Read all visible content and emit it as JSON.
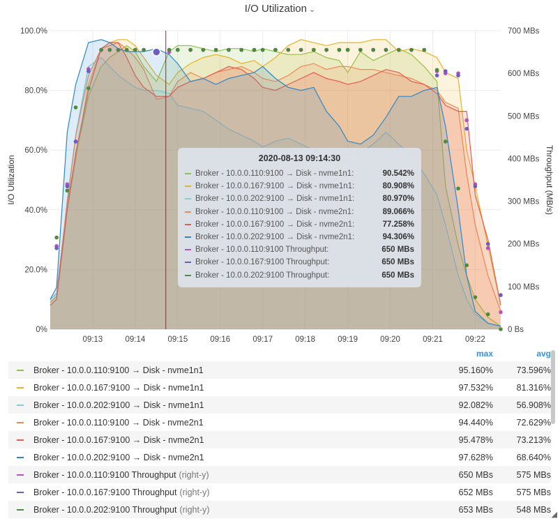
{
  "header": {
    "title": "I/O Utilization",
    "dropdown_icon": "chevron-down-icon"
  },
  "chart_data": {
    "type": "area",
    "title": "I/O Utilization",
    "ylabel_left": "I/O Utilization",
    "ylabel_right": "Throughput (MB/s)",
    "ylim_left": [
      0,
      100
    ],
    "ylim_right": [
      0,
      700
    ],
    "yticks_left": [
      "0%",
      "20.0%",
      "40.0%",
      "60.0%",
      "80.0%",
      "100.0%"
    ],
    "yticks_right": [
      "0 Bs",
      "100 MBs",
      "200 MBs",
      "300 MBs",
      "400 MBs",
      "500 MBs",
      "600 MBs",
      "700 MBs"
    ],
    "xlim": [
      12.0,
      22.6
    ],
    "xticks": [
      {
        "v": 13,
        "label": "09:13"
      },
      {
        "v": 14,
        "label": "09:14"
      },
      {
        "v": 15,
        "label": "09:15"
      },
      {
        "v": 16,
        "label": "09:16"
      },
      {
        "v": 17,
        "label": "09:17"
      },
      {
        "v": 18,
        "label": "09:18"
      },
      {
        "v": 19,
        "label": "09:19"
      },
      {
        "v": 20,
        "label": "09:20"
      },
      {
        "v": 21,
        "label": "09:21"
      },
      {
        "v": 22,
        "label": "09:22"
      }
    ],
    "x": [
      12.0,
      12.15,
      12.4,
      12.6,
      12.9,
      13.2,
      13.4,
      13.6,
      13.8,
      14.0,
      14.2,
      14.5,
      14.8,
      15.0,
      15.3,
      15.6,
      15.9,
      16.2,
      16.5,
      16.8,
      17.0,
      17.3,
      17.6,
      17.9,
      18.2,
      18.5,
      18.8,
      19.0,
      19.3,
      19.6,
      19.9,
      20.2,
      20.5,
      20.8,
      21.1,
      21.3,
      21.6,
      21.8,
      22.0,
      22.3,
      22.6
    ],
    "crosshair_x": 14.72,
    "series": [
      {
        "name": "Broker - 10.0.0.110:9100 → Disk - nvme1n1",
        "color": "#8bc34a",
        "axis": "left",
        "values": [
          10,
          12,
          42,
          58,
          78,
          88,
          91,
          93,
          95,
          93,
          88,
          83,
          93,
          95,
          95,
          94,
          93,
          94,
          94,
          93,
          94,
          93,
          92,
          92,
          93,
          91,
          90,
          86,
          93,
          90,
          92,
          94,
          92,
          88,
          83,
          48,
          28,
          18,
          10,
          4,
          1
        ]
      },
      {
        "name": "Broker - 10.0.0.167:9100 → Disk - nvme1n1",
        "color": "#e6b325",
        "axis": "left",
        "values": [
          9,
          11,
          40,
          57,
          82,
          94,
          96,
          97,
          97,
          95,
          91,
          85,
          82,
          86,
          89,
          91,
          92,
          91,
          89,
          90,
          88,
          91,
          95,
          97,
          96,
          95,
          96,
          96,
          96,
          97,
          97,
          93,
          94,
          93,
          91,
          86,
          84,
          60,
          48,
          28,
          8
        ]
      },
      {
        "name": "Broker - 10.0.0.202:9100 → Disk - nvme1n1",
        "color": "#7fcfdc",
        "axis": "left",
        "values": [
          10,
          12,
          42,
          65,
          88,
          91,
          88,
          85,
          83,
          81,
          80,
          80,
          79,
          75,
          74,
          73,
          70,
          67,
          65,
          63,
          61,
          63,
          64,
          62,
          60,
          58,
          57,
          56,
          59,
          62,
          66,
          62,
          58,
          52,
          45,
          35,
          18,
          10,
          5,
          2,
          1
        ]
      },
      {
        "name": "Broker - 10.0.0.110:9100 → Disk - nvme2n1",
        "color": "#f08a52",
        "axis": "left",
        "values": [
          9,
          11,
          43,
          65,
          85,
          94,
          95,
          96,
          94,
          91,
          87,
          77,
          78,
          83,
          86,
          84,
          86,
          87,
          88,
          86,
          84,
          83,
          85,
          88,
          89,
          87,
          88,
          88,
          87,
          87,
          86,
          85,
          84,
          82,
          80,
          76,
          74,
          52,
          35,
          18,
          6
        ]
      },
      {
        "name": "Broker - 10.0.0.167:9100 → Disk - nvme2n1",
        "color": "#e85a4f",
        "axis": "left",
        "values": [
          8,
          10,
          40,
          59,
          80,
          94,
          96,
          96,
          91,
          85,
          81,
          78,
          78,
          81,
          83,
          84,
          86,
          88,
          87,
          84,
          81,
          80,
          82,
          84,
          86,
          84,
          83,
          82,
          83,
          85,
          87,
          86,
          83,
          82,
          79,
          75,
          73,
          73,
          45,
          30,
          8
        ]
      },
      {
        "name": "Broker - 10.0.0.202:9100 → Disk - nvme2n1",
        "color": "#2e86c9",
        "axis": "left",
        "values": [
          10,
          14,
          66,
          82,
          96,
          97,
          96,
          94,
          93,
          93,
          93,
          94,
          92,
          89,
          83,
          84,
          82,
          84,
          85,
          86,
          88,
          84,
          81,
          80,
          81,
          73,
          68,
          63,
          62,
          65,
          71,
          78,
          78,
          80,
          81,
          68,
          40,
          18,
          6,
          2,
          1
        ]
      },
      {
        "name": "Broker - 10.0.0.110:9100 Throughput",
        "color": "#b84fc4",
        "axis": "right",
        "suffix": "(right-y)",
        "markers": true,
        "values": [
          null,
          195,
          340,
          440,
          610,
          655,
          655,
          655,
          655,
          655,
          655,
          650,
          650,
          655,
          655,
          655,
          655,
          655,
          655,
          655,
          655,
          655,
          655,
          655,
          655,
          655,
          655,
          655,
          655,
          655,
          655,
          655,
          655,
          655,
          605,
          600,
          600,
          490,
          340,
          190,
          40
        ]
      },
      {
        "name": "Broker - 10.0.0.167:9100 Throughput",
        "color": "#6a5fbf",
        "axis": "right",
        "suffix": "(right-y)",
        "markers": true,
        "values": [
          null,
          190,
          335,
          440,
          605,
          655,
          655,
          655,
          655,
          655,
          655,
          652,
          655,
          655,
          655,
          655,
          655,
          655,
          655,
          655,
          655,
          655,
          655,
          655,
          655,
          655,
          655,
          655,
          655,
          655,
          655,
          655,
          655,
          655,
          595,
          605,
          595,
          470,
          335,
          200,
          80
        ]
      },
      {
        "name": "Broker - 10.0.0.202:9100 Throughput",
        "color": "#4f8a3a",
        "axis": "right",
        "suffix": "(right-y)",
        "markers": true,
        "values": [
          null,
          215,
          325,
          520,
          565,
          655,
          655,
          655,
          655,
          655,
          655,
          650,
          655,
          655,
          655,
          655,
          655,
          655,
          655,
          655,
          655,
          655,
          655,
          655,
          655,
          655,
          655,
          655,
          655,
          655,
          655,
          655,
          655,
          655,
          608,
          440,
          330,
          150,
          75,
          35,
          0
        ]
      }
    ]
  },
  "tooltip": {
    "title": "2020-08-13 09:14:30",
    "rows": [
      {
        "label": "Broker - 10.0.0.110:9100 → Disk - nvme1n1:",
        "value": "90.542%",
        "color": "#8bc34a"
      },
      {
        "label": "Broker - 10.0.0.167:9100 → Disk - nvme1n1:",
        "value": "80.908%",
        "color": "#e6b325"
      },
      {
        "label": "Broker - 10.0.0.202:9100 → Disk - nvme1n1:",
        "value": "80.970%",
        "color": "#7fcfdc"
      },
      {
        "label": "Broker - 10.0.0.110:9100 → Disk - nvme2n1:",
        "value": "89.066%",
        "color": "#f08a52"
      },
      {
        "label": "Broker - 10.0.0.167:9100 → Disk - nvme2n1:",
        "value": "77.258%",
        "color": "#e85a4f"
      },
      {
        "label": "Broker - 10.0.0.202:9100 → Disk - nvme2n1:",
        "value": "94.306%",
        "color": "#2e86c9"
      },
      {
        "label": "Broker - 10.0.0.110:9100 Throughput:",
        "value": "650 MBs",
        "color": "#b84fc4"
      },
      {
        "label": "Broker - 10.0.0.167:9100 Throughput:",
        "value": "650 MBs",
        "color": "#6a5fbf"
      },
      {
        "label": "Broker - 10.0.0.202:9100 Throughput:",
        "value": "650 MBs",
        "color": "#4f8a3a"
      }
    ]
  },
  "legend": {
    "col_max": "max",
    "col_avg": "avg",
    "rows": [
      {
        "name": "Broker - 10.0.0.110:9100 → Disk - nvme1n1",
        "suffix": "",
        "max": "95.160%",
        "avg": "73.596%",
        "color": "#8bc34a"
      },
      {
        "name": "Broker - 10.0.0.167:9100 → Disk - nvme1n1",
        "suffix": "",
        "max": "97.532%",
        "avg": "81.316%",
        "color": "#e6b325"
      },
      {
        "name": "Broker - 10.0.0.202:9100 → Disk - nvme1n1",
        "suffix": "",
        "max": "92.082%",
        "avg": "56.908%",
        "color": "#7fcfdc"
      },
      {
        "name": "Broker - 10.0.0.110:9100 → Disk - nvme2n1",
        "suffix": "",
        "max": "94.440%",
        "avg": "72.629%",
        "color": "#f08a52"
      },
      {
        "name": "Broker - 10.0.0.167:9100 → Disk - nvme2n1",
        "suffix": "",
        "max": "95.478%",
        "avg": "73.213%",
        "color": "#e85a4f"
      },
      {
        "name": "Broker - 10.0.0.202:9100 → Disk - nvme2n1",
        "suffix": "",
        "max": "97.628%",
        "avg": "68.640%",
        "color": "#2e86c9"
      },
      {
        "name": "Broker - 10.0.0.110:9100 Throughput",
        "suffix": "(right-y)",
        "max": "650 MBs",
        "avg": "575 MBs",
        "color": "#b84fc4"
      },
      {
        "name": "Broker - 10.0.0.167:9100 Throughput",
        "suffix": "(right-y)",
        "max": "652 MBs",
        "avg": "575 MBs",
        "color": "#6a5fbf"
      },
      {
        "name": "Broker - 10.0.0.202:9100 Throughput",
        "suffix": "(right-y)",
        "max": "653 MBs",
        "avg": "548 MBs",
        "color": "#4f8a3a"
      }
    ]
  }
}
